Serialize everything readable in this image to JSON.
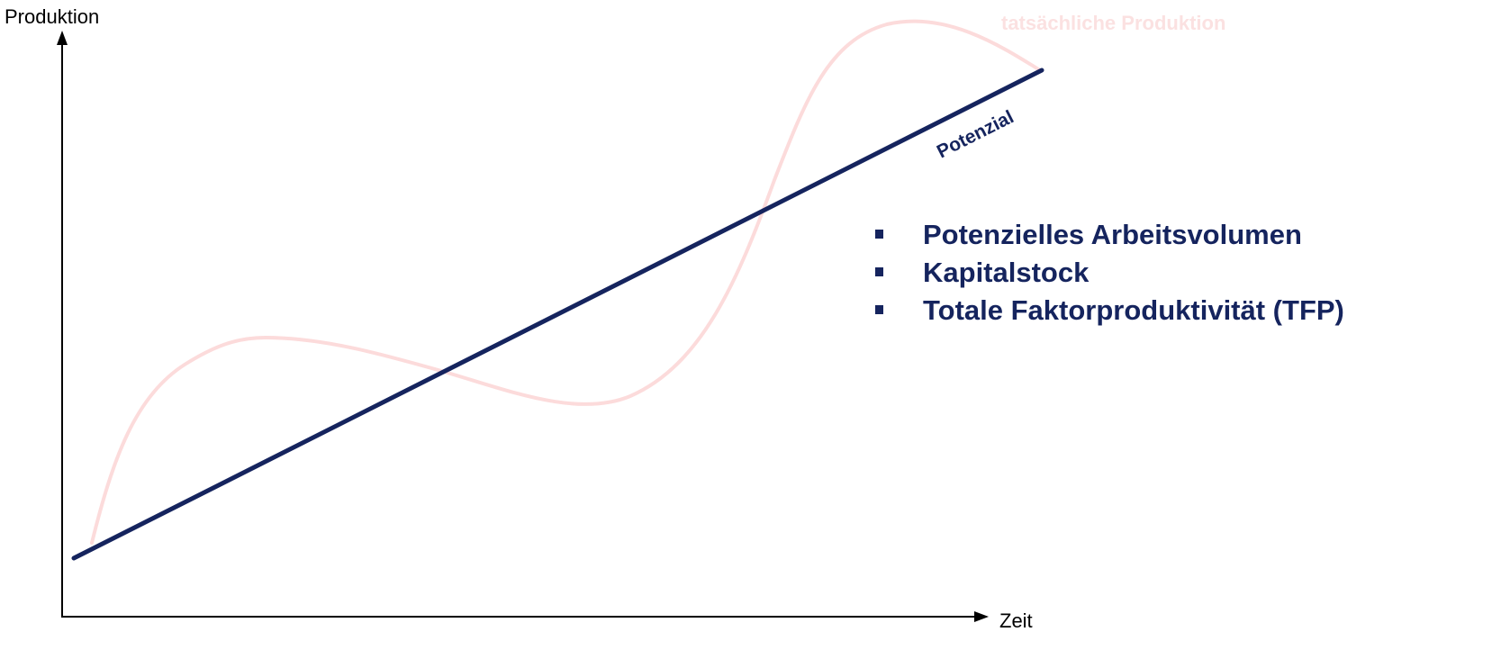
{
  "axes": {
    "y_label": "Produktion",
    "x_label": "Zeit"
  },
  "curves": {
    "actual_label": "tatsächliche Produktion",
    "potential_label": "Potenzial"
  },
  "factors": [
    "Potenzielles Arbeitsvolumen",
    "Kapitalstock",
    "Totale Faktorproduktivität (TFP)"
  ],
  "colors": {
    "axis": "#000000",
    "potential_line": "#15245e",
    "actual_curve": "#fcdbdb",
    "actual_label": "#fbe1e1",
    "factor_text": "#15245e"
  }
}
